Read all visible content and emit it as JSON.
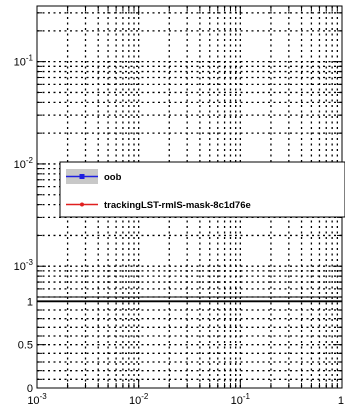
{
  "chart_data": [
    {
      "type": "line",
      "panel": "upper",
      "x_scale": "log",
      "y_scale": "log",
      "xlim": [
        0.001,
        1
      ],
      "ylim": [
        0.0005,
        0.35
      ],
      "grid": true,
      "y_tick_labels": [
        {
          "base": "10",
          "exp": "-1",
          "value": 0.1
        },
        {
          "base": "10",
          "exp": "-2",
          "value": 0.01
        },
        {
          "base": "10",
          "exp": "-3",
          "value": 0.001
        }
      ],
      "legend_position": "center-right",
      "legend": [
        {
          "label": "oob",
          "color": "#1f1fe0",
          "marker": "square",
          "band": "#c8c8c8"
        },
        {
          "label": "trackingLST-rmIS-mask-8c1d76e",
          "color": "#e01f1f",
          "marker": "dot"
        }
      ],
      "series": [
        {
          "name": "oob",
          "values": []
        },
        {
          "name": "trackingLST-rmIS-mask-8c1d76e",
          "values": []
        }
      ]
    },
    {
      "type": "line",
      "panel": "lower-ratio",
      "x_scale": "log",
      "y_scale": "linear",
      "xlim": [
        0.001,
        1
      ],
      "ylim": [
        0,
        1.05
      ],
      "grid": true,
      "y_tick_labels": [
        "0",
        "0.5",
        "1"
      ],
      "x_tick_labels": [
        {
          "base": "10",
          "exp": "-3",
          "value": 0.001
        },
        {
          "base": "10",
          "exp": "-2",
          "value": 0.01
        },
        {
          "base": "10",
          "exp": "-1",
          "value": 0.1
        },
        {
          "base": "1",
          "exp": "",
          "value": 1
        }
      ],
      "series": []
    }
  ]
}
